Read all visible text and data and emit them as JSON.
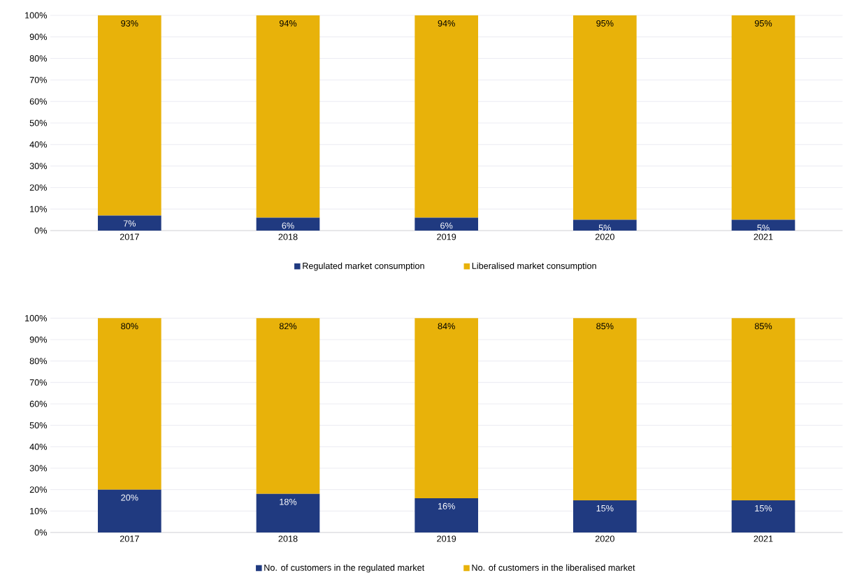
{
  "chart_data": [
    {
      "type": "bar",
      "stacked": true,
      "categories": [
        "2017",
        "2018",
        "2019",
        "2020",
        "2021"
      ],
      "series": [
        {
          "name": "Regulated market consumption",
          "color": "#203a80",
          "values": [
            7,
            6,
            6,
            5,
            5
          ],
          "value_labels": [
            "7%",
            "6%",
            "6%",
            "5%",
            "5%"
          ]
        },
        {
          "name": "Liberalised market consumption",
          "color": "#e8b20a",
          "values": [
            93,
            94,
            94,
            95,
            95
          ],
          "value_labels": [
            "93%",
            "94%",
            "94%",
            "95%",
            "95%"
          ]
        }
      ],
      "ylim": [
        0,
        100
      ],
      "yticks": [
        {
          "value": 0,
          "label": "0%"
        },
        {
          "value": 10,
          "label": "10%"
        },
        {
          "value": 20,
          "label": "20%"
        },
        {
          "value": 30,
          "label": "30%"
        },
        {
          "value": 40,
          "label": "40%"
        },
        {
          "value": 50,
          "label": "50%"
        },
        {
          "value": 60,
          "label": "60%"
        },
        {
          "value": 70,
          "label": "70%"
        },
        {
          "value": 80,
          "label": "80%"
        },
        {
          "value": 90,
          "label": "90%"
        },
        {
          "value": 100,
          "label": "100%"
        }
      ],
      "grid": "y",
      "legend": "bottom"
    },
    {
      "type": "bar",
      "stacked": true,
      "categories": [
        "2017",
        "2018",
        "2019",
        "2020",
        "2021"
      ],
      "series": [
        {
          "name": "No. of customers in the regulated market",
          "color": "#203a80",
          "values": [
            20,
            18,
            16,
            15,
            15
          ],
          "value_labels": [
            "20%",
            "18%",
            "16%",
            "15%",
            "15%"
          ]
        },
        {
          "name": "No. of customers in the liberalised market",
          "color": "#e8b20a",
          "values": [
            80,
            82,
            84,
            85,
            85
          ],
          "value_labels": [
            "80%",
            "82%",
            "84%",
            "85%",
            "85%"
          ]
        }
      ],
      "ylim": [
        0,
        100
      ],
      "yticks": [
        {
          "value": 0,
          "label": "0%"
        },
        {
          "value": 10,
          "label": "10%"
        },
        {
          "value": 20,
          "label": "20%"
        },
        {
          "value": 30,
          "label": "30%"
        },
        {
          "value": 40,
          "label": "40%"
        },
        {
          "value": 50,
          "label": "50%"
        },
        {
          "value": 60,
          "label": "60%"
        },
        {
          "value": 70,
          "label": "70%"
        },
        {
          "value": 80,
          "label": "80%"
        },
        {
          "value": 90,
          "label": "90%"
        },
        {
          "value": 100,
          "label": "100%"
        }
      ],
      "grid": "y",
      "legend": "bottom"
    }
  ]
}
